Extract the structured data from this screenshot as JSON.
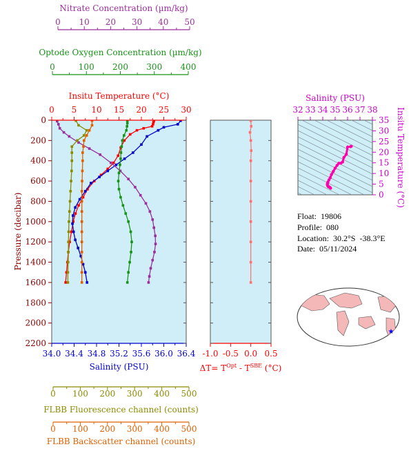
{
  "axes": {
    "nitrate": {
      "label": "Nitrate Concentration (µm/kg)",
      "ticks": [
        "0",
        "10",
        "20",
        "30",
        "40",
        "50"
      ],
      "range": [
        0,
        50
      ],
      "color": "#9b2e9b"
    },
    "oxygen": {
      "label": "Optode Oxygen Concentration (µm/kg)",
      "ticks": [
        "0",
        "100",
        "200",
        "300",
        "400"
      ],
      "range": [
        0,
        400
      ],
      "color": "#179317"
    },
    "temperature": {
      "label": "Insitu Temperature (°C)",
      "ticks": [
        "0",
        "5",
        "10",
        "15",
        "20",
        "25",
        "30"
      ],
      "range": [
        0,
        30
      ],
      "color": "#ff0000"
    },
    "salinity": {
      "label": "Salinity (PSU)",
      "ticks": [
        "34.0",
        "34.4",
        "34.8",
        "35.2",
        "35.6",
        "36.0",
        "36.4"
      ],
      "range": [
        34.0,
        36.4
      ],
      "color": "#0000cc"
    },
    "pressure": {
      "label": "Pressure (decibar)",
      "ticks": [
        "0",
        "200",
        "400",
        "600",
        "800",
        "1000",
        "1200",
        "1400",
        "1600",
        "1800",
        "2000",
        "2200"
      ],
      "range": [
        0,
        2200
      ],
      "color": "#8b0000"
    },
    "fluorescence": {
      "label": "FLBB Fluorescence channel (counts)",
      "ticks": [
        "0",
        "100",
        "200",
        "300",
        "400",
        "500"
      ],
      "range": [
        0,
        500
      ],
      "color": "#8b8b00"
    },
    "backscatter": {
      "label": "FLBB Backscatter channel (counts)",
      "ticks": [
        "0",
        "100",
        "200",
        "300",
        "400",
        "500"
      ],
      "range": [
        0,
        500
      ],
      "color": "#e06000"
    },
    "dt": {
      "label_prefix": "ΔT= T",
      "sup1": "Opt",
      "mid": " - T",
      "sup2": "SBE",
      "suffix": " (°C)",
      "ticks": [
        "-1.0",
        "-0.5",
        "0.0",
        "0.5"
      ],
      "range": [
        -1.0,
        0.5
      ],
      "color": "#ff0000"
    },
    "ts_salinity": {
      "label": "Salinity (PSU)",
      "ticks": [
        "32",
        "33",
        "34",
        "35",
        "36",
        "37",
        "38"
      ],
      "range": [
        32,
        38
      ],
      "color": "#cc00cc"
    },
    "ts_temperature": {
      "label": "Insitu Temperature (°C)",
      "ticks": [
        "0",
        "5",
        "10",
        "15",
        "20",
        "25",
        "30",
        "35"
      ],
      "range": [
        0,
        35
      ],
      "color": "#cc00cc"
    }
  },
  "info": {
    "float": "Float:  19806",
    "profile": "Profile:  080",
    "location": "Location:  30.2°S  -38.3°E",
    "date": "Date:  05/11/2024"
  },
  "colors": {
    "panel_bg": "#cfeef8",
    "map_water": "#ffffff",
    "map_land": "#f4b8b8",
    "marker": "#0000ff",
    "dt_line": "#ff7070",
    "ts_line": "#ff00aa"
  },
  "chart_data": {
    "type": "line",
    "y_axis": "pressure",
    "y_range": [
      0,
      2200
    ],
    "series": [
      {
        "name": "Insitu Temperature (°C)",
        "axis": "temperature",
        "color": "#ff0000",
        "points": [
          [
            22.8,
            5
          ],
          [
            22.7,
            20
          ],
          [
            22.6,
            40
          ],
          [
            22.4,
            60
          ],
          [
            20.5,
            80
          ],
          [
            19.0,
            100
          ],
          [
            17.5,
            140
          ],
          [
            16.2,
            200
          ],
          [
            15.4,
            270
          ],
          [
            14.8,
            350
          ],
          [
            13.8,
            420
          ],
          [
            12.5,
            480
          ],
          [
            11.0,
            540
          ],
          [
            9.5,
            600
          ],
          [
            8.0,
            680
          ],
          [
            7.0,
            760
          ],
          [
            6.0,
            840
          ],
          [
            5.3,
            920
          ],
          [
            4.8,
            1000
          ],
          [
            4.4,
            1100
          ],
          [
            4.0,
            1200
          ],
          [
            3.7,
            1300
          ],
          [
            3.5,
            1400
          ],
          [
            3.3,
            1500
          ],
          [
            3.1,
            1600
          ]
        ]
      },
      {
        "name": "Salinity (PSU)",
        "axis": "salinity",
        "color": "#0000cc",
        "points": [
          [
            36.3,
            5
          ],
          [
            36.25,
            40
          ],
          [
            36.0,
            70
          ],
          [
            35.9,
            100
          ],
          [
            35.7,
            160
          ],
          [
            35.6,
            240
          ],
          [
            35.45,
            320
          ],
          [
            35.3,
            380
          ],
          [
            35.15,
            440
          ],
          [
            35.0,
            500
          ],
          [
            34.85,
            560
          ],
          [
            34.7,
            620
          ],
          [
            34.6,
            700
          ],
          [
            34.5,
            780
          ],
          [
            34.42,
            860
          ],
          [
            34.38,
            940
          ],
          [
            34.37,
            1020
          ],
          [
            34.39,
            1100
          ],
          [
            34.42,
            1180
          ],
          [
            34.47,
            1260
          ],
          [
            34.52,
            1340
          ],
          [
            34.56,
            1420
          ],
          [
            34.6,
            1500
          ],
          [
            34.63,
            1600
          ]
        ]
      },
      {
        "name": "Nitrate Concentration (µm/kg)",
        "axis": "nitrate",
        "color": "#9b2e9b",
        "points": [
          [
            2.0,
            10
          ],
          [
            2.5,
            40
          ],
          [
            3.0,
            80
          ],
          [
            4.5,
            120
          ],
          [
            6.5,
            160
          ],
          [
            10.0,
            220
          ],
          [
            14.0,
            280
          ],
          [
            18.0,
            340
          ],
          [
            22.0,
            420
          ],
          [
            25.5,
            500
          ],
          [
            28.5,
            580
          ],
          [
            31.0,
            660
          ],
          [
            33.0,
            740
          ],
          [
            35.0,
            820
          ],
          [
            36.5,
            900
          ],
          [
            37.5,
            980
          ],
          [
            38.0,
            1060
          ],
          [
            38.5,
            1140
          ],
          [
            38.6,
            1220
          ],
          [
            38.2,
            1300
          ],
          [
            37.5,
            1380
          ],
          [
            36.8,
            1460
          ],
          [
            36.3,
            1540
          ],
          [
            36.0,
            1600
          ]
        ]
      },
      {
        "name": "Optode Oxygen Concentration (µm/kg)",
        "axis": "oxygen",
        "color": "#179317",
        "points": [
          [
            225,
            5
          ],
          [
            225,
            30
          ],
          [
            224,
            60
          ],
          [
            222,
            100
          ],
          [
            215,
            150
          ],
          [
            210,
            200
          ],
          [
            208,
            260
          ],
          [
            206,
            320
          ],
          [
            205,
            380
          ],
          [
            203,
            440
          ],
          [
            200,
            520
          ],
          [
            198,
            600
          ],
          [
            200,
            680
          ],
          [
            205,
            760
          ],
          [
            212,
            840
          ],
          [
            220,
            920
          ],
          [
            228,
            1000
          ],
          [
            235,
            1100
          ],
          [
            238,
            1200
          ],
          [
            236,
            1300
          ],
          [
            232,
            1400
          ],
          [
            228,
            1500
          ],
          [
            225,
            1600
          ]
        ]
      },
      {
        "name": "FLBB Fluorescence channel (counts)",
        "axis": "fluorescence",
        "color": "#8b8b00",
        "points": [
          [
            90,
            5
          ],
          [
            100,
            50
          ],
          [
            130,
            100
          ],
          [
            120,
            150
          ],
          [
            95,
            200
          ],
          [
            75,
            260
          ],
          [
            75,
            320
          ],
          [
            75,
            400
          ],
          [
            74,
            500
          ],
          [
            72,
            600
          ],
          [
            70,
            700
          ],
          [
            68,
            800
          ],
          [
            66,
            900
          ],
          [
            64,
            1000
          ],
          [
            63,
            1100
          ],
          [
            62,
            1200
          ],
          [
            62,
            1300
          ],
          [
            61,
            1400
          ],
          [
            60,
            1500
          ],
          [
            60,
            1600
          ]
        ]
      },
      {
        "name": "FLBB Backscatter channel (counts)",
        "axis": "backscatter",
        "color": "#e06000",
        "points": [
          [
            150,
            5
          ],
          [
            150,
            50
          ],
          [
            140,
            100
          ],
          [
            130,
            150
          ],
          [
            120,
            200
          ],
          [
            118,
            260
          ],
          [
            115,
            320
          ],
          [
            115,
            400
          ],
          [
            114,
            500
          ],
          [
            113,
            600
          ],
          [
            112,
            700
          ],
          [
            112,
            800
          ],
          [
            112,
            900
          ],
          [
            112,
            1000
          ],
          [
            112,
            1100
          ],
          [
            112,
            1200
          ],
          [
            112,
            1300
          ],
          [
            112,
            1400
          ],
          [
            112,
            1500
          ],
          [
            112,
            1600
          ]
        ]
      },
      {
        "name": "ΔT",
        "axis": "dt",
        "color": "#ff7070",
        "points": [
          [
            0.0,
            5
          ],
          [
            0.01,
            60
          ],
          [
            -0.02,
            120
          ],
          [
            0.0,
            200
          ],
          [
            0.01,
            300
          ],
          [
            0.0,
            400
          ],
          [
            0.0,
            600
          ],
          [
            0.0,
            800
          ],
          [
            0.0,
            1000
          ],
          [
            0.0,
            1200
          ],
          [
            0.0,
            1400
          ],
          [
            0.0,
            1600
          ]
        ]
      }
    ]
  }
}
